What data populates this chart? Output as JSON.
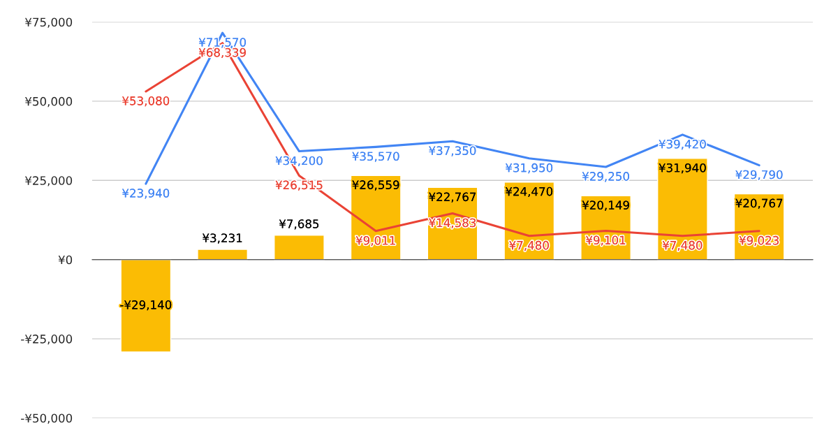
{
  "chart_data": {
    "type": "bar",
    "categories": [
      null,
      null,
      null,
      null,
      null,
      null,
      null,
      null,
      null
    ],
    "series": [
      {
        "color": "#fbbc04",
        "values": [
          -29140,
          3231,
          7685,
          26559,
          22767,
          24470,
          20149,
          31940,
          20767
        ],
        "value_labels": [
          "-¥29,140",
          "¥3,231",
          "¥7,685",
          "¥26,559",
          "¥22,767",
          "¥24,470",
          "¥20,149",
          "¥31,940",
          "¥20,767"
        ]
      },
      {
        "type": "line",
        "color": "#4285f4",
        "values": [
          23940,
          71570,
          34200,
          35570,
          37350,
          31950,
          29250,
          39420,
          29790
        ],
        "value_labels": [
          "¥23,940",
          "¥71,570",
          "¥34,200",
          "¥35,570",
          "¥37,350",
          "¥31,950",
          "¥29,250",
          "¥39,420",
          "¥29,790"
        ]
      },
      {
        "type": "line",
        "color": "#ea4335",
        "values": [
          53080,
          68339,
          26515,
          9011,
          14583,
          7480,
          9101,
          7480,
          9023
        ],
        "value_labels": [
          "¥53,080",
          "¥68,339",
          "¥26,515",
          "¥9,011",
          "¥14,583",
          "¥7,480",
          "¥9,101",
          "¥7,480",
          "¥9,023"
        ]
      }
    ],
    "ylim": [
      -50000,
      75000
    ],
    "yticks": [
      {
        "value": -50000,
        "label": "-¥50,000"
      },
      {
        "value": -25000,
        "label": "-¥25,000"
      },
      {
        "value": 0,
        "label": "¥0"
      },
      {
        "value": 25000,
        "label": "¥25,000"
      },
      {
        "value": 50000,
        "label": "¥50,000"
      },
      {
        "value": 75000,
        "label": "¥75,000"
      }
    ],
    "grid": "y",
    "marker": "none",
    "line_style": "solid"
  }
}
